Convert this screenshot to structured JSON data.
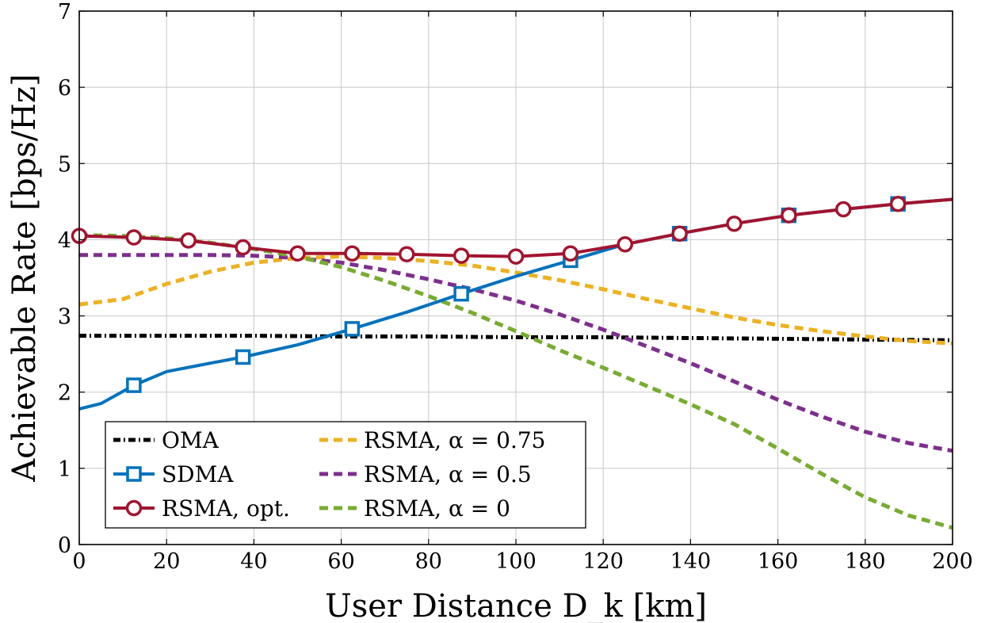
{
  "chart_data": {
    "type": "line",
    "xlabel": "User Distance D_k [km]",
    "ylabel": "Achievable Rate [bps/Hz]",
    "xlim": [
      0,
      200
    ],
    "ylim": [
      0,
      7
    ],
    "x_ticks": [
      "0",
      "20",
      "40",
      "60",
      "80",
      "100",
      "120",
      "140",
      "160",
      "180",
      "200"
    ],
    "y_ticks": [
      "0",
      "1",
      "2",
      "3",
      "4",
      "5",
      "6",
      "7"
    ],
    "grid": true,
    "legend_position": "bottom-left",
    "series": [
      {
        "name": "OMA",
        "color": "#000000",
        "style": "dashdot",
        "marker": "none",
        "x": [
          0,
          20,
          40,
          60,
          80,
          100,
          120,
          140,
          160,
          180,
          200
        ],
        "y": [
          2.74,
          2.74,
          2.74,
          2.73,
          2.73,
          2.72,
          2.72,
          2.71,
          2.7,
          2.69,
          2.68
        ]
      },
      {
        "name": "SDMA",
        "color": "#0072BD",
        "style": "solid",
        "marker": "square",
        "x": [
          0,
          5,
          12.5,
          20,
          30,
          37.5,
          50,
          62.5,
          75,
          87.5,
          100,
          112.5,
          125,
          137.5,
          150,
          162.5,
          175,
          187.5,
          200
        ],
        "y": [
          1.78,
          1.85,
          2.09,
          2.27,
          2.38,
          2.46,
          2.62,
          2.83,
          3.05,
          3.29,
          3.52,
          3.73,
          3.94,
          4.08,
          4.21,
          4.32,
          4.4,
          4.47,
          4.53
        ]
      },
      {
        "name": "RSMA, opt.",
        "color": "#A2142F",
        "style": "solid",
        "marker": "circle",
        "x": [
          0,
          12.5,
          25,
          37.5,
          50,
          62.5,
          75,
          87.5,
          100,
          112.5,
          125,
          137.5,
          150,
          162.5,
          175,
          187.5,
          200
        ],
        "y": [
          4.05,
          4.03,
          3.99,
          3.9,
          3.82,
          3.82,
          3.81,
          3.79,
          3.78,
          3.82,
          3.94,
          4.08,
          4.21,
          4.32,
          4.4,
          4.47,
          4.53
        ]
      },
      {
        "name": "RSMA, α = 0.75",
        "color": "#EDB120",
        "style": "dashed",
        "marker": "none",
        "x": [
          0,
          10,
          20,
          30,
          40,
          50,
          60,
          70,
          80,
          90,
          100,
          110,
          120,
          130,
          140,
          150,
          160,
          170,
          180,
          190,
          200
        ],
        "y": [
          3.15,
          3.22,
          3.42,
          3.58,
          3.7,
          3.76,
          3.78,
          3.76,
          3.72,
          3.66,
          3.57,
          3.47,
          3.35,
          3.22,
          3.1,
          2.98,
          2.88,
          2.8,
          2.73,
          2.67,
          2.64
        ]
      },
      {
        "name": "RSMA, α = 0.5",
        "color": "#7E2F8E",
        "style": "dashed",
        "marker": "none",
        "x": [
          0,
          10,
          20,
          30,
          40,
          50,
          60,
          70,
          80,
          90,
          100,
          110,
          120,
          130,
          140,
          150,
          160,
          170,
          180,
          190,
          200
        ],
        "y": [
          3.8,
          3.8,
          3.8,
          3.8,
          3.79,
          3.76,
          3.7,
          3.6,
          3.48,
          3.35,
          3.2,
          3.02,
          2.82,
          2.6,
          2.38,
          2.14,
          1.9,
          1.68,
          1.48,
          1.33,
          1.23
        ]
      },
      {
        "name": "RSMA, α = 0",
        "color": "#77AC30",
        "style": "dashed",
        "marker": "none",
        "x": [
          0,
          10,
          20,
          30,
          40,
          50,
          60,
          70,
          80,
          90,
          100,
          110,
          120,
          130,
          140,
          150,
          160,
          170,
          180,
          190,
          200
        ],
        "y": [
          4.06,
          4.05,
          4.02,
          3.96,
          3.88,
          3.78,
          3.64,
          3.46,
          3.26,
          3.04,
          2.8,
          2.55,
          2.32,
          2.08,
          1.84,
          1.58,
          1.26,
          0.93,
          0.62,
          0.38,
          0.22
        ]
      }
    ]
  }
}
